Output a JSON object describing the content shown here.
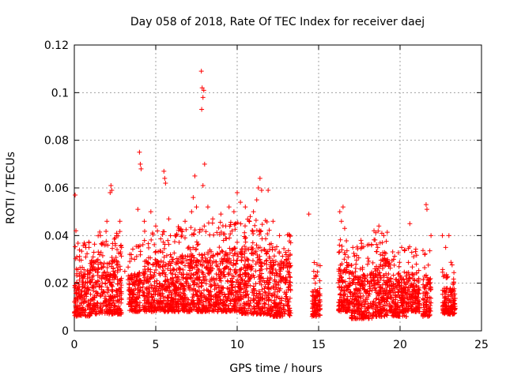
{
  "chart_data": {
    "type": "scatter",
    "title": "Day 058 of 2018, Rate Of TEC Index for receiver daej",
    "xlabel": "GPS time / hours",
    "ylabel": "ROTI / TECUs",
    "xlim": [
      0,
      25
    ],
    "ylim": [
      0,
      0.12
    ],
    "xticks": [
      0,
      5,
      10,
      15,
      20,
      25
    ],
    "xtick_labels": [
      "0",
      "5",
      "10",
      "15",
      "20",
      "25"
    ],
    "yticks": [
      0,
      0.02,
      0.04,
      0.06,
      0.08,
      0.1,
      0.12
    ],
    "ytick_labels": [
      "0",
      "0.02",
      "0.04",
      "0.06",
      "0.08",
      "0.1",
      "0.12"
    ],
    "grid": true,
    "marker": "+",
    "color": "#ff0000",
    "series": [
      {
        "name": "ROTI",
        "points": [
          [
            0.05,
            0.057
          ],
          [
            0.1,
            0.042
          ],
          [
            0.15,
            0.031
          ],
          [
            0.3,
            0.024
          ],
          [
            0.5,
            0.022
          ],
          [
            0.7,
            0.031
          ],
          [
            0.9,
            0.035
          ],
          [
            1.2,
            0.033
          ],
          [
            1.6,
            0.04
          ],
          [
            2.0,
            0.046
          ],
          [
            2.2,
            0.058
          ],
          [
            2.25,
            0.061
          ],
          [
            2.3,
            0.059
          ],
          [
            2.6,
            0.04
          ],
          [
            2.8,
            0.046
          ],
          [
            2.9,
            0.035
          ],
          [
            3.1,
            0.025
          ],
          [
            3.5,
            0.032
          ],
          [
            3.7,
            0.03
          ],
          [
            3.9,
            0.051
          ],
          [
            4.0,
            0.075
          ],
          [
            4.05,
            0.07
          ],
          [
            4.1,
            0.068
          ],
          [
            4.3,
            0.046
          ],
          [
            4.7,
            0.05
          ],
          [
            5.0,
            0.044
          ],
          [
            5.5,
            0.067
          ],
          [
            5.55,
            0.064
          ],
          [
            5.6,
            0.062
          ],
          [
            5.8,
            0.047
          ],
          [
            6.2,
            0.04
          ],
          [
            6.8,
            0.046
          ],
          [
            7.2,
            0.05
          ],
          [
            7.3,
            0.056
          ],
          [
            7.4,
            0.065
          ],
          [
            7.5,
            0.052
          ],
          [
            7.8,
            0.109
          ],
          [
            7.85,
            0.102
          ],
          [
            7.9,
            0.098
          ],
          [
            7.82,
            0.093
          ],
          [
            7.95,
            0.101
          ],
          [
            8.0,
            0.07
          ],
          [
            7.9,
            0.061
          ],
          [
            8.2,
            0.052
          ],
          [
            8.5,
            0.047
          ],
          [
            9.0,
            0.049
          ],
          [
            9.3,
            0.044
          ],
          [
            9.5,
            0.052
          ],
          [
            9.8,
            0.05
          ],
          [
            10.0,
            0.058
          ],
          [
            10.2,
            0.054
          ],
          [
            10.5,
            0.052
          ],
          [
            10.8,
            0.048
          ],
          [
            11.0,
            0.05
          ],
          [
            11.2,
            0.055
          ],
          [
            11.5,
            0.059
          ],
          [
            11.3,
            0.06
          ],
          [
            11.4,
            0.064
          ],
          [
            11.9,
            0.059
          ],
          [
            12.2,
            0.046
          ],
          [
            12.6,
            0.04
          ],
          [
            13.0,
            0.03
          ],
          [
            14.4,
            0.049
          ],
          [
            14.7,
            0.025
          ],
          [
            14.8,
            0.02
          ],
          [
            16.3,
            0.05
          ],
          [
            16.4,
            0.046
          ],
          [
            16.5,
            0.052
          ],
          [
            16.6,
            0.043
          ],
          [
            17.1,
            0.035
          ],
          [
            17.6,
            0.038
          ],
          [
            18.0,
            0.036
          ],
          [
            18.4,
            0.042
          ],
          [
            18.7,
            0.044
          ],
          [
            19.0,
            0.04
          ],
          [
            19.3,
            0.027
          ],
          [
            19.6,
            0.03
          ],
          [
            20.1,
            0.035
          ],
          [
            20.6,
            0.045
          ],
          [
            21.0,
            0.028
          ],
          [
            21.6,
            0.053
          ],
          [
            21.65,
            0.051
          ],
          [
            21.9,
            0.04
          ],
          [
            22.6,
            0.04
          ],
          [
            22.8,
            0.035
          ],
          [
            23.0,
            0.04
          ],
          [
            23.3,
            0.02
          ]
        ],
        "dense_intervals": [
          [
            0.0,
            1.0,
            0.006,
            0.026
          ],
          [
            1.0,
            2.9,
            0.007,
            0.03
          ],
          [
            3.3,
            4.1,
            0.008,
            0.024
          ],
          [
            4.2,
            6.3,
            0.008,
            0.03
          ],
          [
            6.3,
            8.2,
            0.008,
            0.032
          ],
          [
            8.2,
            10.0,
            0.008,
            0.034
          ],
          [
            10.0,
            12.0,
            0.007,
            0.035
          ],
          [
            12.0,
            13.3,
            0.006,
            0.03
          ],
          [
            14.6,
            15.1,
            0.006,
            0.018
          ],
          [
            16.2,
            17.0,
            0.008,
            0.028
          ],
          [
            17.0,
            18.3,
            0.005,
            0.025
          ],
          [
            18.3,
            19.4,
            0.006,
            0.03
          ],
          [
            19.4,
            20.4,
            0.006,
            0.022
          ],
          [
            20.4,
            21.2,
            0.008,
            0.024
          ],
          [
            21.4,
            21.9,
            0.006,
            0.022
          ],
          [
            22.6,
            23.4,
            0.007,
            0.018
          ]
        ]
      }
    ]
  }
}
